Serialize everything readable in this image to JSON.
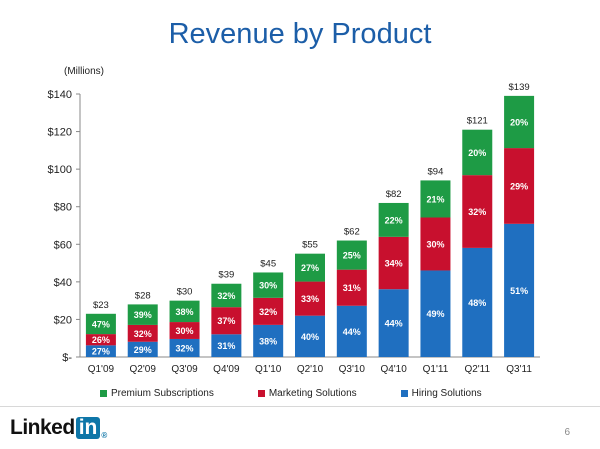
{
  "title": "Revenue by Product",
  "footer": {
    "logo_text": "Linked",
    "logo_box": "in",
    "page_number": "6"
  },
  "chart_data": {
    "type": "bar",
    "stacked": true,
    "title": "Revenue by Product",
    "ylabel": "(Millions)",
    "ylim": [
      0,
      140
    ],
    "yticks": [
      {
        "value": 0,
        "label": "$-"
      },
      {
        "value": 20,
        "label": "$20"
      },
      {
        "value": 40,
        "label": "$40"
      },
      {
        "value": 60,
        "label": "$60"
      },
      {
        "value": 80,
        "label": "$80"
      },
      {
        "value": 100,
        "label": "$100"
      },
      {
        "value": 120,
        "label": "$120"
      },
      {
        "value": 140,
        "label": "$140"
      }
    ],
    "categories": [
      "Q1'09",
      "Q2'09",
      "Q3'09",
      "Q4'09",
      "Q1'10",
      "Q2'10",
      "Q3'10",
      "Q4'10",
      "Q1'11",
      "Q2'11",
      "Q3'11"
    ],
    "totals": [
      23,
      28,
      30,
      39,
      45,
      55,
      62,
      82,
      94,
      121,
      139
    ],
    "total_labels": [
      "$23",
      "$28",
      "$30",
      "$39",
      "$45",
      "$55",
      "$62",
      "$82",
      "$94",
      "$121",
      "$139"
    ],
    "legend_position": "bottom",
    "series": [
      {
        "name": "Hiring Solutions",
        "color": "#1f6fc0",
        "percent": [
          27,
          29,
          32,
          31,
          38,
          40,
          44,
          44,
          49,
          48,
          51
        ],
        "labels": [
          "27%",
          "29%",
          "32%",
          "31%",
          "38%",
          "40%",
          "44%",
          "44%",
          "49%",
          "48%",
          "51%"
        ]
      },
      {
        "name": "Marketing Solutions",
        "color": "#c8102e",
        "percent": [
          26,
          32,
          30,
          37,
          32,
          33,
          31,
          34,
          30,
          32,
          29
        ],
        "labels": [
          "26%",
          "32%",
          "30%",
          "37%",
          "32%",
          "33%",
          "31%",
          "34%",
          "30%",
          "32%",
          "29%"
        ]
      },
      {
        "name": "Premium Subscriptions",
        "color": "#1e9b45",
        "percent": [
          47,
          39,
          38,
          32,
          30,
          27,
          25,
          22,
          21,
          20,
          20
        ],
        "labels": [
          "47%",
          "39%",
          "38%",
          "32%",
          "30%",
          "27%",
          "25%",
          "22%",
          "21%",
          "20%",
          "20%"
        ]
      }
    ],
    "legend_order": [
      "Premium Subscriptions",
      "Marketing Solutions",
      "Hiring Solutions"
    ]
  }
}
